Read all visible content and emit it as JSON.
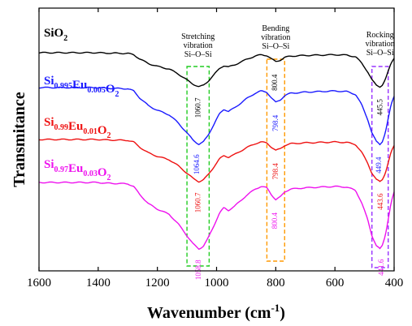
{
  "chart_data": {
    "type": "line",
    "ylabel": "Transmitance",
    "xlabel_main": "Wavenumber (cm",
    "xlabel_sup": "-1",
    "xlabel_tail": ")",
    "xlim": [
      1600,
      400
    ],
    "x_ticks": [
      "1600",
      "1400",
      "1200",
      "1000",
      "800",
      "600",
      "400"
    ],
    "y_ticks_shown": false,
    "regions": [
      {
        "id": "stretching",
        "title_lines": [
          "Stretching",
          "vibration",
          "Si–O–Si"
        ],
        "x_range": [
          1100,
          1025
        ],
        "color": "#22cc22"
      },
      {
        "id": "bending",
        "title_lines": [
          "Bending",
          "vibration",
          "Si–O–Si"
        ],
        "x_range": [
          830,
          770
        ],
        "color": "#ff9900"
      },
      {
        "id": "rocking",
        "title_lines": [
          "Rocking",
          "vibration",
          "Si–O–Si"
        ],
        "x_range": [
          475,
          420
        ],
        "color": "#9933ff"
      }
    ],
    "series": [
      {
        "base": "SiO",
        "subs": [
          "2"
        ],
        "parts": [
          [
            "SiO",
            "2"
          ]
        ],
        "color": "#000000",
        "offset": 0,
        "peak_labels": [
          {
            "region": "stretching",
            "x": 1060.7,
            "text": "1060.7"
          },
          {
            "region": "bending",
            "x": 800.4,
            "text": "800.4"
          },
          {
            "region": "rocking",
            "x": 445.5,
            "text": "445.5"
          }
        ]
      },
      {
        "parts": [
          [
            "Si",
            "0.995"
          ],
          [
            "Eu",
            "0.005"
          ],
          [
            "O",
            "2"
          ]
        ],
        "color": "#1a1aff",
        "offset": 1,
        "peak_labels": [
          {
            "region": "stretching",
            "x": 1064.6,
            "text": "1064.6"
          },
          {
            "region": "bending",
            "x": 798.4,
            "text": "798.4"
          },
          {
            "region": "rocking",
            "x": 449.4,
            "text": "449.4"
          }
        ]
      },
      {
        "parts": [
          [
            "Si",
            "0.99"
          ],
          [
            "Eu",
            "0.01"
          ],
          [
            "O",
            "2"
          ]
        ],
        "color": "#ee1111",
        "offset": 2,
        "peak_labels": [
          {
            "region": "stretching",
            "x": 1060.7,
            "text": "1060.7"
          },
          {
            "region": "bending",
            "x": 798.4,
            "text": "798.4"
          },
          {
            "region": "rocking",
            "x": 443.6,
            "text": "443.6"
          }
        ]
      },
      {
        "parts": [
          [
            "Si",
            "0.97"
          ],
          [
            "Eu",
            "0.03"
          ],
          [
            "O",
            "2"
          ]
        ],
        "color": "#ee11ee",
        "offset": 3,
        "peak_labels": [
          {
            "region": "stretching",
            "x": 1058.8,
            "text": "1058.8"
          },
          {
            "region": "bending",
            "x": 800.4,
            "text": "800.4"
          },
          {
            "region": "rocking",
            "x": 441.6,
            "text": "441.6"
          }
        ]
      }
    ],
    "curve_shape": {
      "x": [
        1600,
        1500,
        1400,
        1380,
        1300,
        1280,
        1260,
        1230,
        1200,
        1160,
        1130,
        1100,
        1080,
        1060,
        1045,
        1030,
        1010,
        990,
        975,
        960,
        940,
        900,
        870,
        850,
        830,
        815,
        800,
        785,
        770,
        750,
        700,
        650,
        600,
        560,
        530,
        510,
        490,
        475,
        460,
        448,
        440,
        430,
        420,
        410,
        400
      ],
      "y": [
        0.0,
        0.0,
        0.0,
        0.01,
        0.02,
        0.06,
        0.18,
        0.32,
        0.4,
        0.48,
        0.62,
        0.8,
        0.92,
        1.0,
        0.96,
        0.85,
        0.66,
        0.46,
        0.38,
        0.42,
        0.36,
        0.2,
        0.1,
        0.06,
        0.08,
        0.18,
        0.26,
        0.22,
        0.14,
        0.1,
        0.08,
        0.07,
        0.06,
        0.07,
        0.12,
        0.3,
        0.55,
        0.8,
        0.95,
        1.0,
        0.95,
        0.8,
        0.55,
        0.3,
        0.15
      ]
    }
  }
}
